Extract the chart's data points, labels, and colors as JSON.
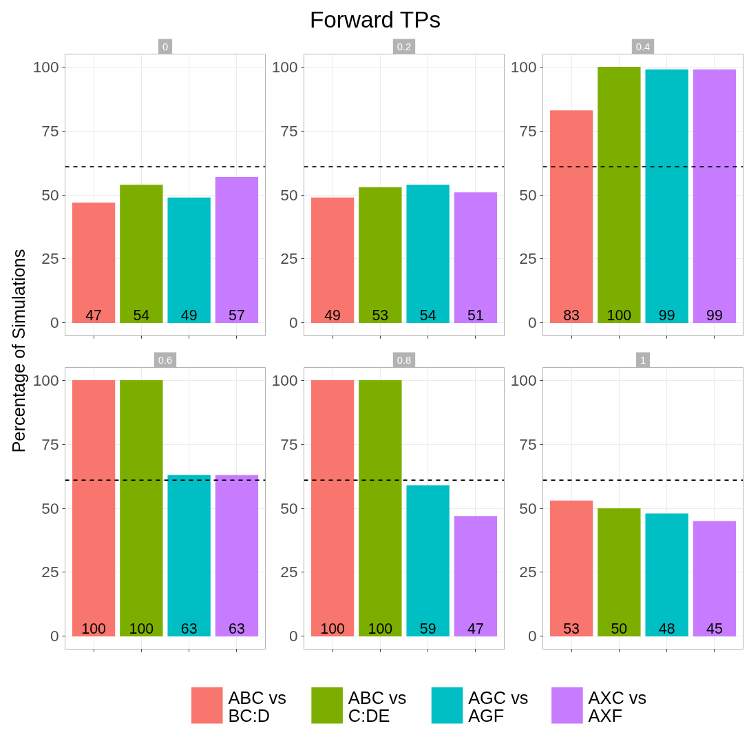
{
  "chart_data": [
    {
      "type": "bar",
      "title": "0",
      "annotations": [
        "Forward TPs"
      ],
      "categories": [
        null,
        null,
        null,
        null
      ],
      "series": [
        {
          "name": "ABC vs BC:D",
          "color": "#f8766d",
          "values": [
            47,
            null,
            null,
            null
          ]
        },
        {
          "name": "ABC vs C:DE",
          "color": "#7cae00",
          "values": [
            null,
            54,
            null,
            null
          ]
        },
        {
          "name": "AGC vs AGF",
          "color": "#00bfc4",
          "values": [
            null,
            null,
            49,
            null
          ]
        },
        {
          "name": "AXC vs AXF",
          "color": "#c77cff",
          "values": [
            null,
            null,
            null,
            57
          ]
        }
      ],
      "ylim": [
        -5,
        105
      ],
      "yticks": [
        0,
        25,
        50,
        75,
        100
      ],
      "grid": true,
      "data_labels": true,
      "tick_labels": "y",
      "legend": "bottom",
      "ylabel": "Percentage of Simulations",
      "ref_lines": [
        {
          "axis": "y",
          "value": 61,
          "line_style": "dashed",
          "color": "#000000"
        }
      ]
    },
    {
      "type": "bar",
      "title": "0.2",
      "categories": [
        null,
        null,
        null,
        null
      ],
      "values": [
        49,
        53,
        54,
        51
      ],
      "colors": [
        "#f8766d",
        "#7cae00",
        "#00bfc4",
        "#c77cff"
      ],
      "ylim": [
        -5,
        105
      ],
      "yticks": [
        0,
        25,
        50,
        75,
        100
      ],
      "grid": true,
      "data_labels": true,
      "tick_labels": "y",
      "ref_lines": [
        {
          "axis": "y",
          "value": 61,
          "line_style": "dashed",
          "color": "#000000"
        }
      ]
    },
    {
      "type": "bar",
      "title": "0.4",
      "categories": [
        null,
        null,
        null,
        null
      ],
      "values": [
        83,
        100,
        99,
        99
      ],
      "colors": [
        "#f8766d",
        "#7cae00",
        "#00bfc4",
        "#c77cff"
      ],
      "ylim": [
        -5,
        105
      ],
      "yticks": [
        0,
        25,
        50,
        75,
        100
      ],
      "grid": true,
      "data_labels": true,
      "tick_labels": "y",
      "ref_lines": [
        {
          "axis": "y",
          "value": 61,
          "line_style": "dashed",
          "color": "#000000"
        }
      ]
    },
    {
      "type": "bar",
      "title": "0.6",
      "categories": [
        null,
        null,
        null,
        null
      ],
      "values": [
        100,
        100,
        63,
        63
      ],
      "colors": [
        "#f8766d",
        "#7cae00",
        "#00bfc4",
        "#c77cff"
      ],
      "ylim": [
        -5,
        105
      ],
      "yticks": [
        0,
        25,
        50,
        75,
        100
      ],
      "grid": true,
      "data_labels": true,
      "tick_labels": "y",
      "ref_lines": [
        {
          "axis": "y",
          "value": 61,
          "line_style": "dashed",
          "color": "#000000"
        }
      ]
    },
    {
      "type": "bar",
      "title": "0.8",
      "categories": [
        null,
        null,
        null,
        null
      ],
      "values": [
        100,
        100,
        59,
        47
      ],
      "colors": [
        "#f8766d",
        "#7cae00",
        "#00bfc4",
        "#c77cff"
      ],
      "ylim": [
        -5,
        105
      ],
      "yticks": [
        0,
        25,
        50,
        75,
        100
      ],
      "grid": true,
      "data_labels": true,
      "tick_labels": "y",
      "ref_lines": [
        {
          "axis": "y",
          "value": 61,
          "line_style": "dashed",
          "color": "#000000"
        }
      ]
    },
    {
      "type": "bar",
      "title": "1",
      "categories": [
        null,
        null,
        null,
        null
      ],
      "values": [
        53,
        50,
        48,
        45
      ],
      "colors": [
        "#f8766d",
        "#7cae00",
        "#00bfc4",
        "#c77cff"
      ],
      "ylim": [
        -5,
        105
      ],
      "yticks": [
        0,
        25,
        50,
        75,
        100
      ],
      "grid": true,
      "data_labels": true,
      "tick_labels": "y",
      "ref_lines": [
        {
          "axis": "y",
          "value": 61,
          "line_style": "dashed",
          "color": "#000000"
        }
      ]
    }
  ]
}
